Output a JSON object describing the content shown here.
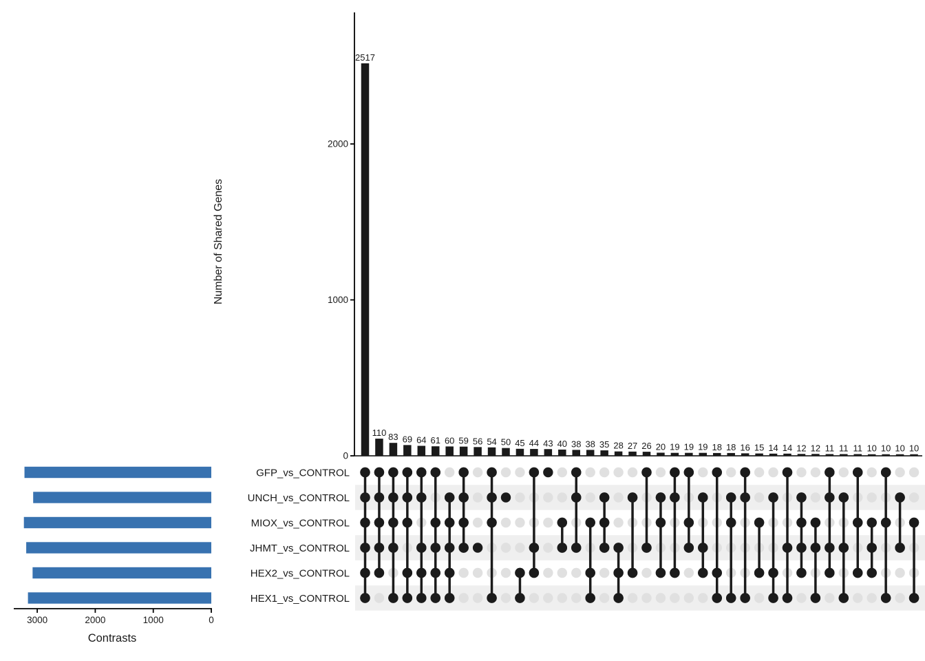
{
  "figure": {
    "background_color": "#ffffff",
    "axis_color": "#000000",
    "text_color": "#1a1a1a"
  },
  "chart_data": {
    "type": "bar",
    "subtype": "upset-plot",
    "intersection_chart": {
      "ylabel": "Number of Shared Genes",
      "yticks": [
        0,
        1000,
        2000
      ],
      "ylim": [
        0,
        2800
      ],
      "bar_color": "#1a1a1a",
      "values": [
        2517,
        110,
        83,
        69,
        64,
        61,
        60,
        59,
        56,
        54,
        50,
        45,
        44,
        43,
        40,
        38,
        38,
        35,
        28,
        27,
        26,
        20,
        19,
        19,
        19,
        18,
        18,
        16,
        15,
        14,
        14,
        12,
        12,
        11,
        11,
        11,
        10,
        10,
        10,
        10
      ]
    },
    "set_chart": {
      "xlabel": "Contrasts",
      "xticks": [
        3000,
        2000,
        1000,
        0
      ],
      "xlim": [
        3400,
        0
      ],
      "bar_color": "#3872b0",
      "sets": [
        {
          "label": "GFP_vs_CONTROL",
          "size": 3220
        },
        {
          "label": "UNCH_vs_CONTROL",
          "size": 3070
        },
        {
          "label": "MIOX_vs_CONTROL",
          "size": 3230
        },
        {
          "label": "JHMT_vs_CONTROL",
          "size": 3190
        },
        {
          "label": "HEX2_vs_CONTROL",
          "size": 3080
        },
        {
          "label": "HEX1_vs_CONTROL",
          "size": 3160
        }
      ]
    },
    "matrix": {
      "row_order": [
        "GFP_vs_CONTROL",
        "UNCH_vs_CONTROL",
        "MIOX_vs_CONTROL",
        "JHMT_vs_CONTROL",
        "HEX2_vs_CONTROL",
        "HEX1_vs_CONTROL"
      ],
      "dot_filled_color": "#1b1b1b",
      "dot_empty_color": "#e0e0e0",
      "stripe_color": "#efefef",
      "memberships": [
        [
          1,
          1,
          1,
          1,
          1,
          1
        ],
        [
          1,
          1,
          1,
          1,
          1,
          0
        ],
        [
          1,
          1,
          1,
          1,
          0,
          1
        ],
        [
          1,
          1,
          1,
          0,
          1,
          1
        ],
        [
          1,
          1,
          0,
          1,
          1,
          1
        ],
        [
          1,
          0,
          1,
          1,
          1,
          1
        ],
        [
          0,
          1,
          1,
          1,
          1,
          1
        ],
        [
          1,
          1,
          1,
          1,
          0,
          0
        ],
        [
          0,
          0,
          0,
          1,
          0,
          0
        ],
        [
          1,
          1,
          1,
          0,
          0,
          1
        ],
        [
          0,
          1,
          0,
          0,
          0,
          0
        ],
        [
          0,
          0,
          0,
          0,
          1,
          1
        ],
        [
          1,
          0,
          0,
          1,
          1,
          0
        ],
        [
          1,
          0,
          0,
          0,
          0,
          0
        ],
        [
          0,
          0,
          1,
          1,
          0,
          0
        ],
        [
          1,
          1,
          0,
          1,
          0,
          0
        ],
        [
          0,
          0,
          1,
          0,
          1,
          1
        ],
        [
          0,
          1,
          1,
          1,
          0,
          0
        ],
        [
          0,
          0,
          0,
          1,
          1,
          1
        ],
        [
          0,
          1,
          0,
          0,
          1,
          0
        ],
        [
          1,
          0,
          0,
          1,
          0,
          0
        ],
        [
          0,
          1,
          1,
          0,
          1,
          0
        ],
        [
          1,
          1,
          0,
          0,
          1,
          0
        ],
        [
          1,
          0,
          1,
          1,
          0,
          0
        ],
        [
          0,
          1,
          0,
          1,
          1,
          0
        ],
        [
          1,
          0,
          0,
          0,
          1,
          1
        ],
        [
          0,
          1,
          1,
          0,
          0,
          1
        ],
        [
          1,
          1,
          0,
          0,
          0,
          1
        ],
        [
          0,
          0,
          1,
          0,
          1,
          0
        ],
        [
          0,
          1,
          0,
          0,
          1,
          1
        ],
        [
          1,
          0,
          0,
          1,
          0,
          1
        ],
        [
          0,
          1,
          1,
          1,
          1,
          0
        ],
        [
          0,
          0,
          1,
          1,
          0,
          1
        ],
        [
          1,
          1,
          0,
          1,
          1,
          0
        ],
        [
          0,
          1,
          0,
          1,
          0,
          1
        ],
        [
          1,
          0,
          1,
          0,
          1,
          0
        ],
        [
          0,
          0,
          1,
          1,
          1,
          0
        ],
        [
          1,
          0,
          1,
          0,
          0,
          1
        ],
        [
          0,
          1,
          0,
          1,
          0,
          0
        ],
        [
          0,
          0,
          1,
          0,
          0,
          1
        ]
      ]
    }
  }
}
